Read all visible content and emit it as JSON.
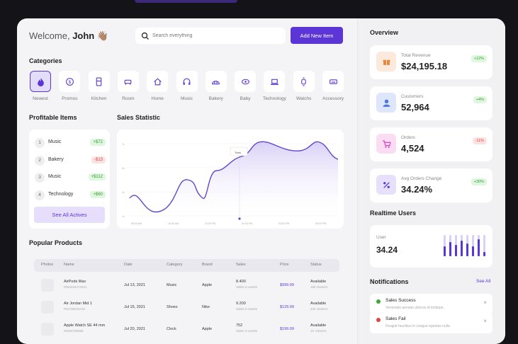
{
  "header": {
    "welcome_prefix": "Welcome,",
    "user_name": "John",
    "wave_emoji": "👋🏽",
    "search_placeholder": "Search everything",
    "add_button": "Add New Item"
  },
  "categories": {
    "title": "Categories",
    "items": [
      {
        "label": "Newest",
        "icon": "flame-icon"
      },
      {
        "label": "Promos",
        "icon": "dollar-icon"
      },
      {
        "label": "Kitchen",
        "icon": "fridge-icon"
      },
      {
        "label": "Room",
        "icon": "sofa-icon"
      },
      {
        "label": "Home",
        "icon": "home-icon"
      },
      {
        "label": "Music",
        "icon": "headphones-icon"
      },
      {
        "label": "Bakery",
        "icon": "bread-icon"
      },
      {
        "label": "Baby",
        "icon": "pacifier-icon"
      },
      {
        "label": "Technology",
        "icon": "laptop-icon"
      },
      {
        "label": "Watchs",
        "icon": "watch-icon"
      },
      {
        "label": "Accessory",
        "icon": "keyboard-icon"
      }
    ]
  },
  "profitable": {
    "title": "Profitable Items",
    "items": [
      {
        "rank": "1",
        "name": "Music",
        "value": "+$72",
        "positive": true
      },
      {
        "rank": "2",
        "name": "Bakery",
        "value": "-$13",
        "positive": false
      },
      {
        "rank": "3",
        "name": "Music",
        "value": "+$112",
        "positive": true
      },
      {
        "rank": "4",
        "name": "Technology",
        "value": "+$60",
        "positive": true
      }
    ],
    "see_all": "See All Actives"
  },
  "sales": {
    "title": "Sales Statistic",
    "tooltip": "Tues",
    "x_labels": [
      "08:00 AM",
      "10:00 AM",
      "12:00 PM",
      "01:00 PM",
      "03:00 PM",
      "05:00 PM"
    ]
  },
  "products": {
    "title": "Popular Products",
    "columns": [
      "Photos",
      "Name",
      "Date",
      "Category",
      "Brand",
      "Sales",
      "Price",
      "Status"
    ],
    "rows": [
      {
        "name": "AirPods Max",
        "code": "#094234472041",
        "date": "Jul 13, 2021",
        "category": "Music",
        "brand": "Apple",
        "sales": "8.400",
        "sales_sub": "Sales in weeks",
        "price": "$999.99",
        "status": "Available",
        "status_sub": "18k Viewers"
      },
      {
        "name": "Air Jordan Mid 1",
        "code": "#04738228410",
        "date": "Jul 15, 2021",
        "category": "Shoes",
        "brand": "Nike",
        "sales": "9.200",
        "sales_sub": "Sales in weeks",
        "price": "$129.99",
        "status": "Available",
        "status_sub": "24k Viewers"
      },
      {
        "name": "Apple Watch SE 44 mm",
        "code": "#0494759398",
        "date": "Jul 20, 2021",
        "category": "Clock",
        "brand": "Apple",
        "sales": "752",
        "sales_sub": "Sales in weeks",
        "price": "$199.99",
        "status": "Available",
        "status_sub": "1K Viewers"
      }
    ]
  },
  "overview": {
    "title": "Overview",
    "cards": [
      {
        "label": "Total Revenue",
        "value": "$24,195.18",
        "badge": "+12%",
        "positive": true,
        "icon": "gift-icon",
        "bg": "#fde8dc",
        "fg": "#e8843a"
      },
      {
        "label": "Customers",
        "value": "52,964",
        "badge": "+4%",
        "positive": true,
        "icon": "user-icon",
        "bg": "#dde6fb",
        "fg": "#4a77e0"
      },
      {
        "label": "Orders",
        "value": "4,524",
        "badge": "-11%",
        "positive": false,
        "icon": "cart-icon",
        "bg": "#fadcf3",
        "fg": "#d84bc8"
      },
      {
        "label": "Avg Orders Change",
        "value": "34.24%",
        "badge": "+30%",
        "positive": true,
        "icon": "percent-icon",
        "bg": "#e7e0fa",
        "fg": "#5b35d5"
      }
    ]
  },
  "realtime": {
    "title": "Realtime Users",
    "label": "User",
    "value": "34.24"
  },
  "notifications": {
    "title": "Notifications",
    "see_all": "See All",
    "items": [
      {
        "title": "Sales Success",
        "desc": "Venenatis aenean ultrices id tristique.",
        "color": "#3aa83a"
      },
      {
        "title": "Sales Fail",
        "desc": "Feugiat faucibus in congue egestas nulla.",
        "color": "#e04545"
      }
    ]
  }
}
